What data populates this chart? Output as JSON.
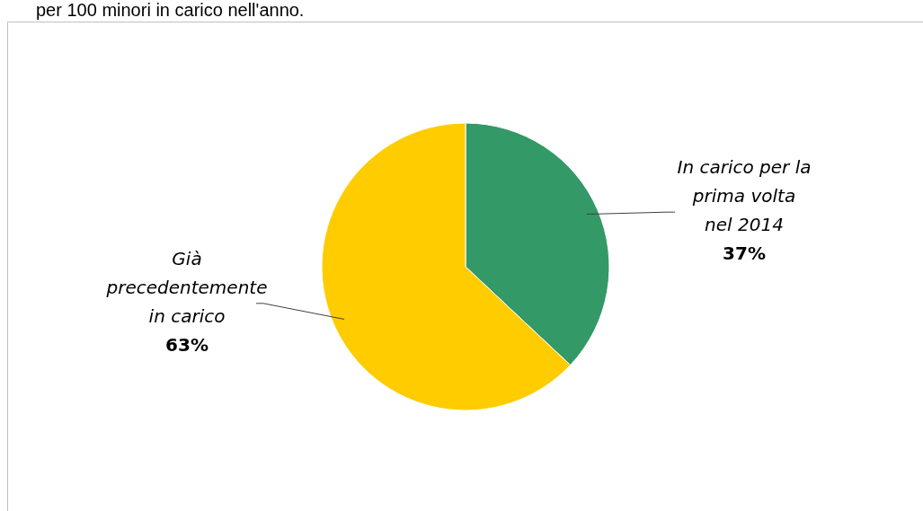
{
  "chart_data": {
    "type": "pie",
    "categories": [
      "In carico per la prima volta nel 2014",
      "Già precedentemente in carico"
    ],
    "values": [
      37,
      63
    ],
    "colors": [
      "#339966",
      "#ffcc00"
    ],
    "value_labels": [
      "37%",
      "63%"
    ],
    "legend": false,
    "annotations": [
      "per 100 minori in carico nell'anno."
    ]
  }
}
